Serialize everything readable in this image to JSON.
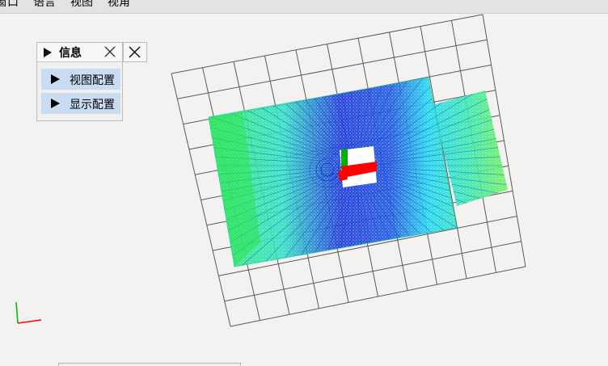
{
  "menu": {
    "items": [
      "窗口",
      "语言",
      "视图",
      "视角"
    ]
  },
  "info_panel": {
    "title": "信息",
    "buttons": [
      "视图配置",
      "显示配置"
    ]
  },
  "icons": {
    "panel_arrow": "play-triangle-icon",
    "close": "close-x-icon",
    "dock_close": "close-x-icon",
    "axes": "coordinate-axes-icon"
  },
  "colors": {
    "background": "#f3f2f1",
    "grid": "#5a5a5a",
    "button_bg": "#c9dcf2",
    "points_near": "#00e070",
    "points_mid": "#00d8e8",
    "points_far": "#1020d0",
    "axis_x": "#ff0000",
    "axis_y": "#00c000",
    "robot_body": "#ffffff"
  }
}
